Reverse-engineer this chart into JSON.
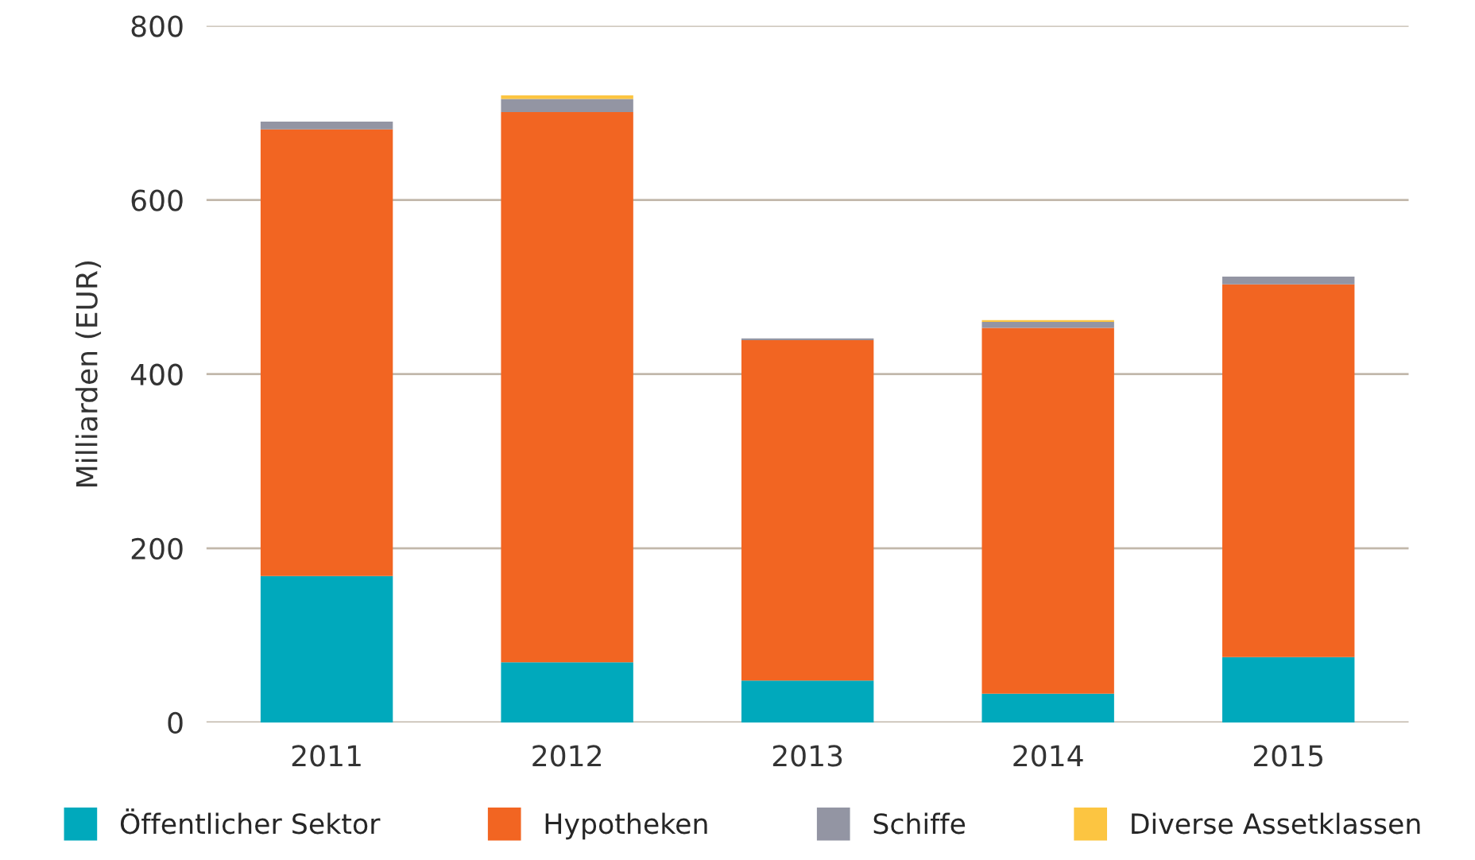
{
  "chart_data": {
    "type": "bar",
    "stacked": true,
    "ylabel": "Milliarden (EUR)",
    "categories": [
      "2011",
      "2012",
      "2013",
      "2014",
      "2015"
    ],
    "series": [
      {
        "name": "Öffentlicher Sektor",
        "color": "#00a9bc",
        "values": [
          168,
          69,
          48,
          33,
          75
        ]
      },
      {
        "name": "Hypotheken",
        "color": "#f26522",
        "values": [
          513,
          632,
          391,
          420,
          428
        ]
      },
      {
        "name": "Schiffe",
        "color": "#9395a3",
        "values": [
          9,
          15,
          2,
          7,
          9
        ]
      },
      {
        "name": "Diverse Assetklassen",
        "color": "#fcc541",
        "values": [
          0,
          4,
          0,
          2,
          0
        ]
      }
    ],
    "ylim": [
      0,
      800
    ],
    "yticks": [
      0,
      200,
      400,
      600,
      800
    ],
    "grid": "y",
    "legend": "bottom"
  }
}
